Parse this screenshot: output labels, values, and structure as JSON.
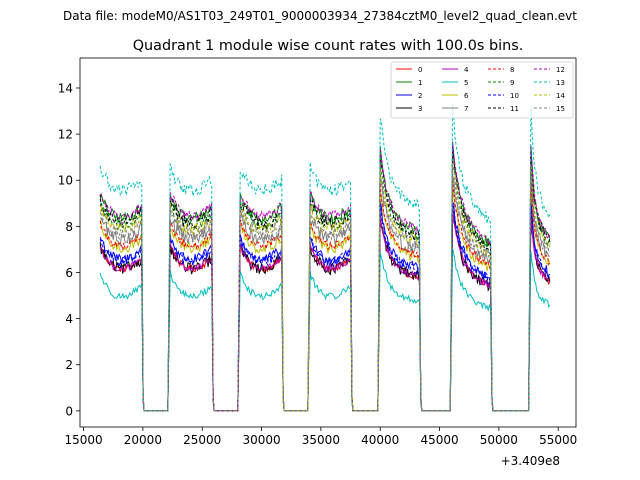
{
  "chart_data": {
    "type": "line",
    "suptitle": "Data file: modeM0/AS1T03_249T01_9000003934_27384cztM0_level2_quad_clean.evt",
    "title": "Quadrant 1 module wise count rates with 100.0s bins.",
    "xlabel": "",
    "ylabel": "",
    "offset_label": "+3.409e8",
    "xlim": [
      14700,
      56500
    ],
    "ylim": [
      -0.7,
      15.3
    ],
    "xticks": [
      15000,
      20000,
      25000,
      30000,
      35000,
      40000,
      45000,
      50000,
      55000
    ],
    "xtick_labels": [
      "15000",
      "20000",
      "25000",
      "30000",
      "35000",
      "40000",
      "45000",
      "50000",
      "55000"
    ],
    "yticks": [
      0,
      2,
      4,
      6,
      8,
      10,
      12,
      14
    ],
    "ytick_labels": [
      "0",
      "2",
      "4",
      "6",
      "8",
      "10",
      "12",
      "14"
    ],
    "bin_seconds": 100,
    "gap_value": 0,
    "segments": [
      {
        "start": 16400,
        "end": 19900,
        "drift": 0.0,
        "flare": 0.0
      },
      {
        "start": 22300,
        "end": 25800,
        "drift": 0.0,
        "flare": 0.0
      },
      {
        "start": 28200,
        "end": 31700,
        "drift": 0.0,
        "flare": 0.0
      },
      {
        "start": 34100,
        "end": 37500,
        "drift": 0.0,
        "flare": 0.0
      },
      {
        "start": 40000,
        "end": 43300,
        "drift": -0.12,
        "flare": 0.28
      },
      {
        "start": 46100,
        "end": 49300,
        "drift": -0.18,
        "flare": 0.32
      },
      {
        "start": 52700,
        "end": 54300,
        "drift": -0.15,
        "flare": 0.3
      }
    ],
    "series": [
      {
        "name": "0",
        "color": "#ff0000",
        "dash": "solid",
        "base": 6.6
      },
      {
        "name": "1",
        "color": "#008000",
        "dash": "solid",
        "base": 8.8
      },
      {
        "name": "2",
        "color": "#0000ff",
        "dash": "solid",
        "base": 7.0
      },
      {
        "name": "3",
        "color": "#000000",
        "dash": "solid",
        "base": 6.6
      },
      {
        "name": "4",
        "color": "#bf00bf",
        "dash": "solid",
        "base": 6.6
      },
      {
        "name": "5",
        "color": "#00bfbf",
        "dash": "solid",
        "base": 5.4
      },
      {
        "name": "6",
        "color": "#bfbf00",
        "dash": "solid",
        "base": 7.5
      },
      {
        "name": "7",
        "color": "#808080",
        "dash": "solid",
        "base": 7.9
      },
      {
        "name": "8",
        "color": "#ff0000",
        "dash": "dashed",
        "base": 7.6
      },
      {
        "name": "9",
        "color": "#008000",
        "dash": "dashed",
        "base": 8.5
      },
      {
        "name": "10",
        "color": "#0000ff",
        "dash": "dashed",
        "base": 6.9
      },
      {
        "name": "11",
        "color": "#000000",
        "dash": "dashed",
        "base": 8.6
      },
      {
        "name": "12",
        "color": "#bf00bf",
        "dash": "dashed",
        "base": 8.9
      },
      {
        "name": "13",
        "color": "#00bfbf",
        "dash": "dashed",
        "base": 10.0
      },
      {
        "name": "14",
        "color": "#bfbf00",
        "dash": "dashed",
        "base": 8.3
      },
      {
        "name": "15",
        "color": "#808080",
        "dash": "dashed",
        "base": 8.1
      }
    ]
  }
}
